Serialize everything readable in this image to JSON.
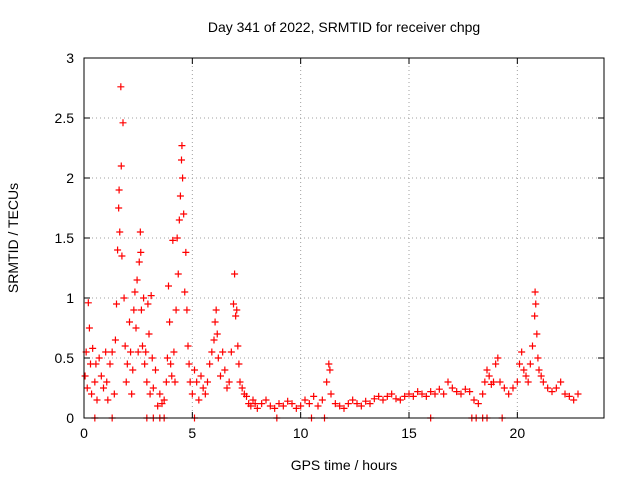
{
  "chart_data": {
    "type": "scatter",
    "title": "Day 341 of 2022, SRMTID for receiver chpg",
    "xlabel": "GPS time / hours",
    "ylabel": "SRMTID / TECUs",
    "xlim": [
      0,
      24
    ],
    "ylim": [
      0,
      3
    ],
    "xticks": [
      0,
      5,
      10,
      15,
      20
    ],
    "xtick_labels": [
      "0",
      "5",
      "10",
      "15",
      "20"
    ],
    "yticks": [
      0,
      0.5,
      1,
      1.5,
      2,
      2.5,
      3
    ],
    "ytick_labels": [
      "0",
      "0.5",
      "1",
      "1.5",
      "2",
      "2.5",
      "3"
    ],
    "grid": true,
    "marker": "+",
    "series": [
      {
        "name": "SRMTID",
        "color": "#ff0000",
        "points": [
          [
            0.05,
            0.35
          ],
          [
            0.1,
            0.55
          ],
          [
            0.15,
            0.25
          ],
          [
            0.2,
            0.96
          ],
          [
            0.25,
            0.75
          ],
          [
            0.3,
            0.45
          ],
          [
            0.35,
            0.2
          ],
          [
            0.4,
            0.58
          ],
          [
            0.5,
            0.3
          ],
          [
            0.55,
            0.45
          ],
          [
            0.6,
            0.15
          ],
          [
            0.7,
            0.5
          ],
          [
            0.8,
            0.35
          ],
          [
            0.9,
            0.25
          ],
          [
            1.0,
            0.55
          ],
          [
            1.05,
            0.3
          ],
          [
            1.1,
            0.15
          ],
          [
            1.2,
            0.45
          ],
          [
            1.3,
            0.55
          ],
          [
            1.4,
            0.2
          ],
          [
            1.45,
            0.65
          ],
          [
            1.5,
            0.95
          ],
          [
            1.55,
            1.4
          ],
          [
            1.6,
            1.75
          ],
          [
            1.62,
            1.9
          ],
          [
            1.65,
            1.55
          ],
          [
            1.7,
            2.76
          ],
          [
            1.72,
            2.1
          ],
          [
            1.75,
            1.35
          ],
          [
            1.8,
            2.46
          ],
          [
            1.85,
            1.0
          ],
          [
            1.9,
            0.6
          ],
          [
            1.95,
            0.3
          ],
          [
            2.0,
            0.45
          ],
          [
            2.1,
            0.8
          ],
          [
            2.15,
            0.55
          ],
          [
            2.2,
            0.2
          ],
          [
            2.25,
            0.4
          ],
          [
            2.3,
            0.9
          ],
          [
            2.35,
            1.05
          ],
          [
            2.4,
            0.75
          ],
          [
            2.45,
            1.15
          ],
          [
            2.5,
            0.55
          ],
          [
            2.55,
            1.3
          ],
          [
            2.6,
            1.55
          ],
          [
            2.62,
            1.38
          ],
          [
            2.65,
            0.9
          ],
          [
            2.7,
            0.6
          ],
          [
            2.75,
            1.0
          ],
          [
            2.8,
            0.45
          ],
          [
            2.85,
            0.55
          ],
          [
            2.9,
            0.3
          ],
          [
            2.95,
            0.95
          ],
          [
            3.0,
            0.7
          ],
          [
            3.05,
            0.2
          ],
          [
            3.1,
            1.02
          ],
          [
            3.15,
            0.5
          ],
          [
            3.2,
            0.25
          ],
          [
            3.3,
            0.4
          ],
          [
            3.4,
            0.1
          ],
          [
            3.5,
            0.2
          ],
          [
            3.6,
            0.12
          ],
          [
            3.7,
            0.15
          ],
          [
            3.8,
            0.3
          ],
          [
            3.85,
            0.5
          ],
          [
            3.9,
            1.1
          ],
          [
            3.95,
            0.8
          ],
          [
            4.0,
            0.45
          ],
          [
            4.05,
            0.35
          ],
          [
            4.1,
            1.48
          ],
          [
            4.15,
            0.55
          ],
          [
            4.2,
            0.3
          ],
          [
            4.25,
            0.9
          ],
          [
            4.3,
            1.5
          ],
          [
            4.35,
            1.2
          ],
          [
            4.4,
            1.65
          ],
          [
            4.45,
            1.85
          ],
          [
            4.5,
            2.15
          ],
          [
            4.52,
            2.27
          ],
          [
            4.55,
            2.0
          ],
          [
            4.6,
            1.7
          ],
          [
            4.65,
            1.05
          ],
          [
            4.7,
            1.38
          ],
          [
            4.75,
            0.9
          ],
          [
            4.8,
            0.6
          ],
          [
            4.85,
            0.45
          ],
          [
            4.9,
            0.3
          ],
          [
            5.0,
            0.2
          ],
          [
            5.1,
            0.4
          ],
          [
            5.2,
            0.3
          ],
          [
            5.3,
            0.15
          ],
          [
            5.4,
            0.35
          ],
          [
            5.5,
            0.25
          ],
          [
            5.6,
            0.2
          ],
          [
            5.7,
            0.3
          ],
          [
            5.8,
            0.45
          ],
          [
            5.9,
            0.55
          ],
          [
            6.0,
            0.65
          ],
          [
            6.05,
            0.8
          ],
          [
            6.1,
            0.9
          ],
          [
            6.15,
            0.7
          ],
          [
            6.2,
            0.5
          ],
          [
            6.3,
            0.35
          ],
          [
            6.4,
            0.55
          ],
          [
            6.5,
            0.4
          ],
          [
            6.6,
            0.25
          ],
          [
            6.7,
            0.3
          ],
          [
            6.8,
            0.55
          ],
          [
            6.9,
            0.95
          ],
          [
            6.95,
            1.2
          ],
          [
            7.0,
            0.85
          ],
          [
            7.05,
            0.9
          ],
          [
            7.1,
            0.6
          ],
          [
            7.15,
            0.45
          ],
          [
            7.2,
            0.3
          ],
          [
            7.3,
            0.25
          ],
          [
            7.4,
            0.2
          ],
          [
            7.5,
            0.18
          ],
          [
            7.6,
            0.12
          ],
          [
            7.7,
            0.1
          ],
          [
            7.8,
            0.15
          ],
          [
            7.9,
            0.12
          ],
          [
            8.0,
            0.08
          ],
          [
            8.2,
            0.12
          ],
          [
            8.4,
            0.15
          ],
          [
            8.6,
            0.1
          ],
          [
            8.8,
            0.08
          ],
          [
            9.0,
            0.12
          ],
          [
            9.2,
            0.1
          ],
          [
            9.4,
            0.14
          ],
          [
            9.6,
            0.12
          ],
          [
            9.8,
            0.08
          ],
          [
            10.0,
            0.1
          ],
          [
            10.2,
            0.15
          ],
          [
            10.4,
            0.12
          ],
          [
            10.6,
            0.18
          ],
          [
            10.8,
            0.1
          ],
          [
            11.0,
            0.15
          ],
          [
            11.2,
            0.3
          ],
          [
            11.3,
            0.45
          ],
          [
            11.35,
            0.4
          ],
          [
            11.4,
            0.2
          ],
          [
            11.6,
            0.12
          ],
          [
            11.8,
            0.1
          ],
          [
            12.0,
            0.08
          ],
          [
            12.2,
            0.12
          ],
          [
            12.4,
            0.15
          ],
          [
            12.6,
            0.12
          ],
          [
            12.8,
            0.1
          ],
          [
            13.0,
            0.14
          ],
          [
            13.2,
            0.12
          ],
          [
            13.4,
            0.16
          ],
          [
            13.6,
            0.18
          ],
          [
            13.8,
            0.15
          ],
          [
            14.0,
            0.18
          ],
          [
            14.2,
            0.2
          ],
          [
            14.4,
            0.16
          ],
          [
            14.6,
            0.15
          ],
          [
            14.8,
            0.18
          ],
          [
            15.0,
            0.2
          ],
          [
            15.2,
            0.18
          ],
          [
            15.4,
            0.22
          ],
          [
            15.6,
            0.2
          ],
          [
            15.8,
            0.18
          ],
          [
            16.0,
            0.22
          ],
          [
            16.2,
            0.2
          ],
          [
            16.4,
            0.24
          ],
          [
            16.6,
            0.2
          ],
          [
            16.8,
            0.3
          ],
          [
            17.0,
            0.25
          ],
          [
            17.2,
            0.22
          ],
          [
            17.4,
            0.2
          ],
          [
            17.6,
            0.24
          ],
          [
            17.8,
            0.22
          ],
          [
            18.0,
            0.15
          ],
          [
            18.2,
            0.12
          ],
          [
            18.4,
            0.2
          ],
          [
            18.5,
            0.3
          ],
          [
            18.6,
            0.4
          ],
          [
            18.7,
            0.35
          ],
          [
            18.8,
            0.28
          ],
          [
            18.9,
            0.3
          ],
          [
            19.0,
            0.45
          ],
          [
            19.1,
            0.5
          ],
          [
            19.2,
            0.3
          ],
          [
            19.4,
            0.25
          ],
          [
            19.6,
            0.2
          ],
          [
            19.8,
            0.25
          ],
          [
            20.0,
            0.3
          ],
          [
            20.1,
            0.45
          ],
          [
            20.2,
            0.55
          ],
          [
            20.3,
            0.4
          ],
          [
            20.4,
            0.35
          ],
          [
            20.5,
            0.3
          ],
          [
            20.6,
            0.45
          ],
          [
            20.7,
            0.6
          ],
          [
            20.8,
            0.85
          ],
          [
            20.82,
            1.05
          ],
          [
            20.85,
            0.95
          ],
          [
            20.9,
            0.7
          ],
          [
            20.95,
            0.5
          ],
          [
            21.0,
            0.4
          ],
          [
            21.1,
            0.35
          ],
          [
            21.2,
            0.3
          ],
          [
            21.4,
            0.25
          ],
          [
            21.6,
            0.22
          ],
          [
            21.8,
            0.25
          ],
          [
            22.0,
            0.3
          ],
          [
            22.2,
            0.2
          ],
          [
            22.4,
            0.18
          ],
          [
            22.6,
            0.15
          ],
          [
            22.8,
            0.2
          ]
        ]
      }
    ],
    "zero_points_x": [
      0.5,
      1.3,
      2.9,
      3.2,
      3.5,
      3.7,
      5.1,
      8.9,
      10.5,
      11.1,
      16.0,
      17.9,
      18.1,
      18.4,
      18.6,
      19.3
    ]
  }
}
